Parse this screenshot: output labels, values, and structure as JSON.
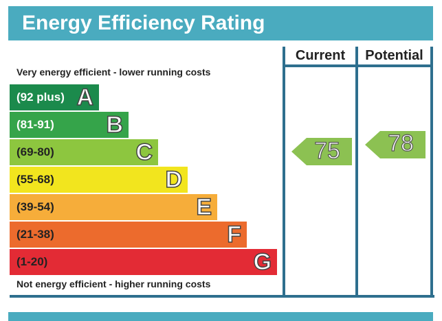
{
  "header": {
    "title": "Energy Efficiency Rating"
  },
  "captions": {
    "top": "Very energy efficient - lower running costs",
    "bottom": "Not energy efficient - higher running costs"
  },
  "columns": {
    "current": "Current",
    "potential": "Potential"
  },
  "colors": {
    "teal": "#4aabbf",
    "frame": "#2e6f8e",
    "arrow": "#8cc152"
  },
  "chart_data": {
    "type": "bar",
    "title": "Energy Efficiency Rating",
    "bands": [
      {
        "letter": "A",
        "range": "(92 plus)",
        "min": 92,
        "max": 100,
        "color": "#1b8a4c"
      },
      {
        "letter": "B",
        "range": "(81-91)",
        "min": 81,
        "max": 91,
        "color": "#35a44a"
      },
      {
        "letter": "C",
        "range": "(69-80)",
        "min": 69,
        "max": 80,
        "color": "#8dc63f"
      },
      {
        "letter": "D",
        "range": "(55-68)",
        "min": 55,
        "max": 68,
        "color": "#f2e51e"
      },
      {
        "letter": "E",
        "range": "(39-54)",
        "min": 39,
        "max": 54,
        "color": "#f6ad3a"
      },
      {
        "letter": "F",
        "range": "(21-38)",
        "min": 21,
        "max": 38,
        "color": "#ec6b2d"
      },
      {
        "letter": "G",
        "range": "(1-20)",
        "min": 1,
        "max": 20,
        "color": "#e32b35"
      }
    ],
    "current": 75,
    "potential": 78
  }
}
